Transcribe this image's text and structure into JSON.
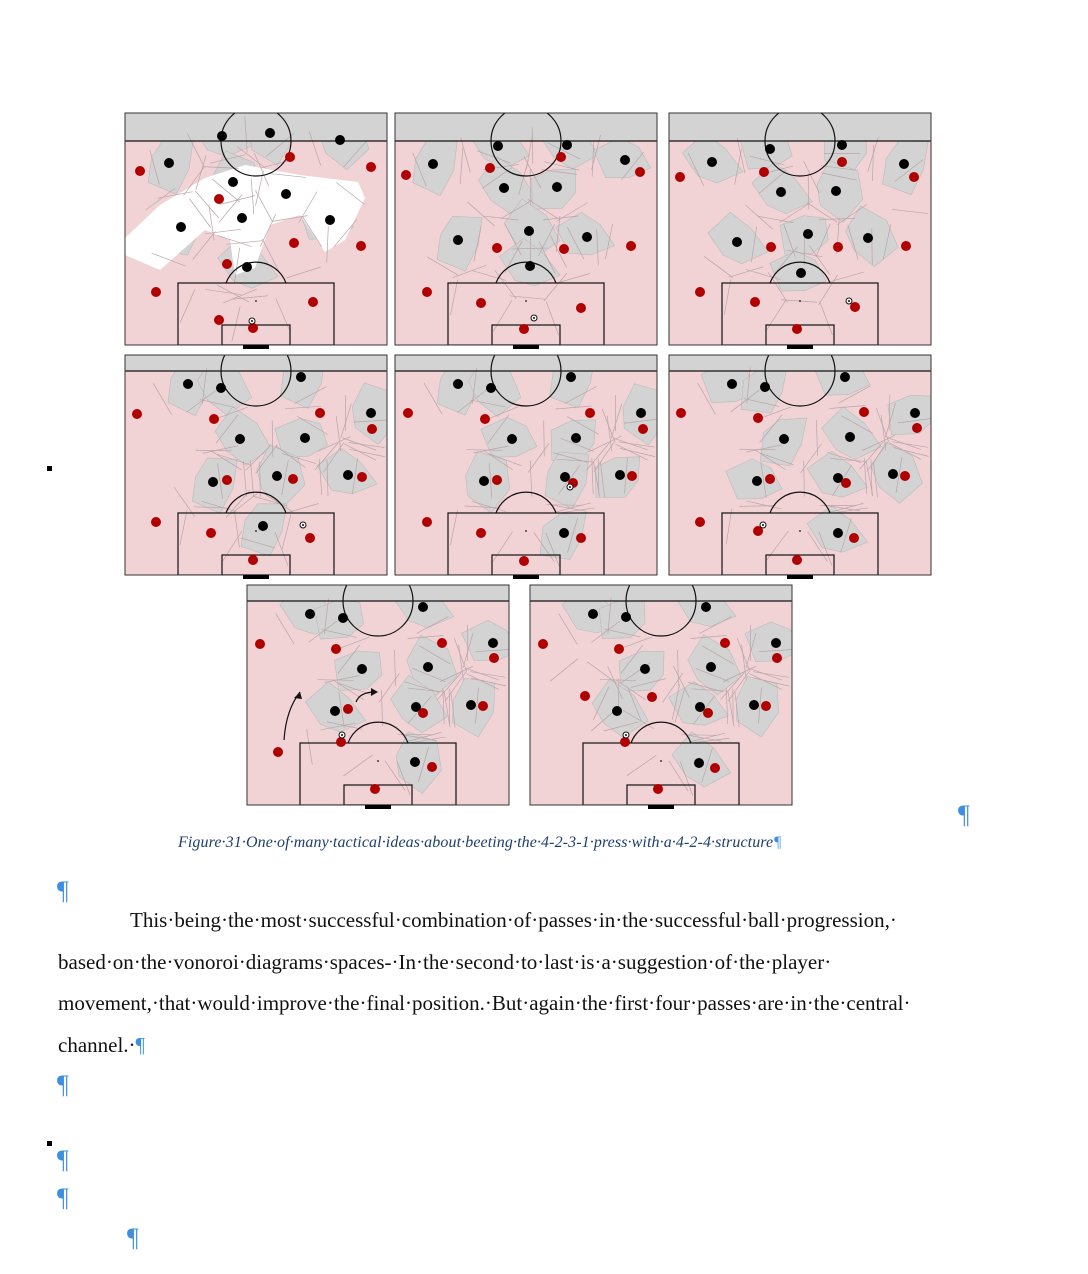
{
  "figure": {
    "caption": "Figure·31·One·of·many·tactical·ideas·about·beeting·the·4-2-3-1·press·with·a·4-2-4·structure",
    "caption_pilcrow": "¶",
    "panels": [
      {
        "black": [
          [
            222,
            136
          ],
          [
            270,
            133
          ],
          [
            340,
            140
          ],
          [
            169,
            163
          ],
          [
            233,
            182
          ],
          [
            286,
            194
          ],
          [
            242,
            218
          ],
          [
            330,
            220
          ],
          [
            181,
            227
          ],
          [
            247,
            267
          ]
        ],
        "red": [
          [
            140,
            171
          ],
          [
            290,
            157
          ],
          [
            371,
            167
          ],
          [
            219,
            199
          ],
          [
            294,
            243
          ],
          [
            361,
            246
          ],
          [
            227,
            264
          ],
          [
            156,
            292
          ],
          [
            313,
            302
          ],
          [
            219,
            320
          ],
          [
            253,
            328
          ]
        ],
        "ball": [
          252,
          321
        ],
        "white_voids": true
      },
      {
        "black": [
          [
            498,
            146
          ],
          [
            567,
            145
          ],
          [
            625,
            160
          ],
          [
            433,
            164
          ],
          [
            504,
            188
          ],
          [
            557,
            187
          ],
          [
            529,
            231
          ],
          [
            587,
            237
          ],
          [
            458,
            240
          ],
          [
            530,
            266
          ]
        ],
        "red": [
          [
            561,
            157
          ],
          [
            490,
            168
          ],
          [
            640,
            172
          ],
          [
            406,
            175
          ],
          [
            497,
            248
          ],
          [
            564,
            249
          ],
          [
            631,
            246
          ],
          [
            427,
            292
          ],
          [
            481,
            303
          ],
          [
            581,
            308
          ],
          [
            524,
            329
          ]
        ],
        "ball": [
          534,
          318
        ]
      },
      {
        "black": [
          [
            770,
            149
          ],
          [
            842,
            145
          ],
          [
            712,
            162
          ],
          [
            904,
            164
          ],
          [
            781,
            192
          ],
          [
            836,
            191
          ],
          [
            808,
            234
          ],
          [
            868,
            238
          ],
          [
            737,
            242
          ],
          [
            801,
            273
          ]
        ],
        "red": [
          [
            842,
            162
          ],
          [
            764,
            172
          ],
          [
            914,
            177
          ],
          [
            680,
            177
          ],
          [
            771,
            247
          ],
          [
            838,
            247
          ],
          [
            906,
            246
          ],
          [
            700,
            292
          ],
          [
            755,
            302
          ],
          [
            855,
            307
          ],
          [
            797,
            329
          ]
        ],
        "ball": [
          849,
          301
        ]
      },
      {
        "black": [
          [
            188,
            384
          ],
          [
            221,
            388
          ],
          [
            301,
            377
          ],
          [
            371,
            413
          ],
          [
            240,
            439
          ],
          [
            305,
            438
          ],
          [
            213,
            482
          ],
          [
            277,
            476
          ],
          [
            348,
            475
          ],
          [
            263,
            526
          ]
        ],
        "red": [
          [
            137,
            414
          ],
          [
            214,
            419
          ],
          [
            320,
            413
          ],
          [
            372,
            429
          ],
          [
            227,
            480
          ],
          [
            293,
            479
          ],
          [
            362,
            477
          ],
          [
            156,
            522
          ],
          [
            211,
            533
          ],
          [
            310,
            538
          ],
          [
            253,
            560
          ]
        ],
        "ball": [
          303,
          525
        ]
      },
      {
        "black": [
          [
            458,
            384
          ],
          [
            491,
            388
          ],
          [
            571,
            377
          ],
          [
            641,
            413
          ],
          [
            512,
            439
          ],
          [
            576,
            438
          ],
          [
            484,
            481
          ],
          [
            565,
            477
          ],
          [
            620,
            475
          ],
          [
            564,
            533
          ]
        ],
        "red": [
          [
            408,
            413
          ],
          [
            485,
            419
          ],
          [
            590,
            413
          ],
          [
            643,
            429
          ],
          [
            497,
            480
          ],
          [
            573,
            483
          ],
          [
            632,
            476
          ],
          [
            427,
            522
          ],
          [
            481,
            533
          ],
          [
            581,
            538
          ],
          [
            524,
            561
          ]
        ],
        "ball": [
          570,
          487
        ]
      },
      {
        "black": [
          [
            732,
            384
          ],
          [
            765,
            387
          ],
          [
            845,
            377
          ],
          [
            915,
            413
          ],
          [
            784,
            439
          ],
          [
            850,
            437
          ],
          [
            757,
            481
          ],
          [
            838,
            478
          ],
          [
            893,
            474
          ],
          [
            838,
            533
          ]
        ],
        "red": [
          [
            681,
            413
          ],
          [
            758,
            418
          ],
          [
            864,
            412
          ],
          [
            917,
            428
          ],
          [
            770,
            479
          ],
          [
            846,
            483
          ],
          [
            905,
            476
          ],
          [
            700,
            522
          ],
          [
            758,
            531
          ],
          [
            854,
            538
          ],
          [
            797,
            560
          ]
        ],
        "ball": [
          763,
          525
        ]
      },
      {
        "black": [
          [
            310,
            614
          ],
          [
            343,
            618
          ],
          [
            423,
            607
          ],
          [
            493,
            643
          ],
          [
            362,
            669
          ],
          [
            428,
            667
          ],
          [
            335,
            711
          ],
          [
            416,
            707
          ],
          [
            471,
            705
          ],
          [
            415,
            762
          ]
        ],
        "red": [
          [
            260,
            644
          ],
          [
            336,
            649
          ],
          [
            442,
            643
          ],
          [
            494,
            658
          ],
          [
            348,
            709
          ],
          [
            423,
            713
          ],
          [
            483,
            706
          ],
          [
            278,
            752
          ],
          [
            341,
            742
          ],
          [
            432,
            767
          ],
          [
            375,
            789
          ]
        ],
        "ball": [
          342,
          735
        ],
        "arrows": true
      },
      {
        "black": [
          [
            593,
            614
          ],
          [
            626,
            617
          ],
          [
            706,
            607
          ],
          [
            776,
            643
          ],
          [
            645,
            669
          ],
          [
            711,
            667
          ],
          [
            617,
            711
          ],
          [
            700,
            707
          ],
          [
            754,
            705
          ],
          [
            699,
            763
          ]
        ],
        "red": [
          [
            543,
            644
          ],
          [
            619,
            649
          ],
          [
            725,
            643
          ],
          [
            777,
            658
          ],
          [
            585,
            696
          ],
          [
            652,
            697
          ],
          [
            708,
            713
          ],
          [
            766,
            706
          ],
          [
            625,
            742
          ],
          [
            715,
            768
          ],
          [
            658,
            789
          ]
        ],
        "ball": [
          626,
          735
        ]
      }
    ]
  },
  "paragraph": {
    "text": "This·being·the·most·successful·combination·of·passes·in·the·successful·ball·progression,· based·on·the·vonoroi·diagrams·spaces-·In·the·second·to·last·is·a·suggestion·of·the·player· movement,·that·would·improve·the·final·position.·But·again·the·first·four·passes·are·in·the·central· channel.·",
    "end_mark": "¶"
  },
  "marks": {
    "pilcrow": "¶"
  },
  "colors": {
    "pitch_pink": "#f1d3d6",
    "pitch_grey": "#d3d3d3",
    "red_player": "#b00000",
    "black_player": "#000000",
    "pilcrow_blue": "#3d8fe0",
    "caption_blue": "#1f3e6e"
  }
}
